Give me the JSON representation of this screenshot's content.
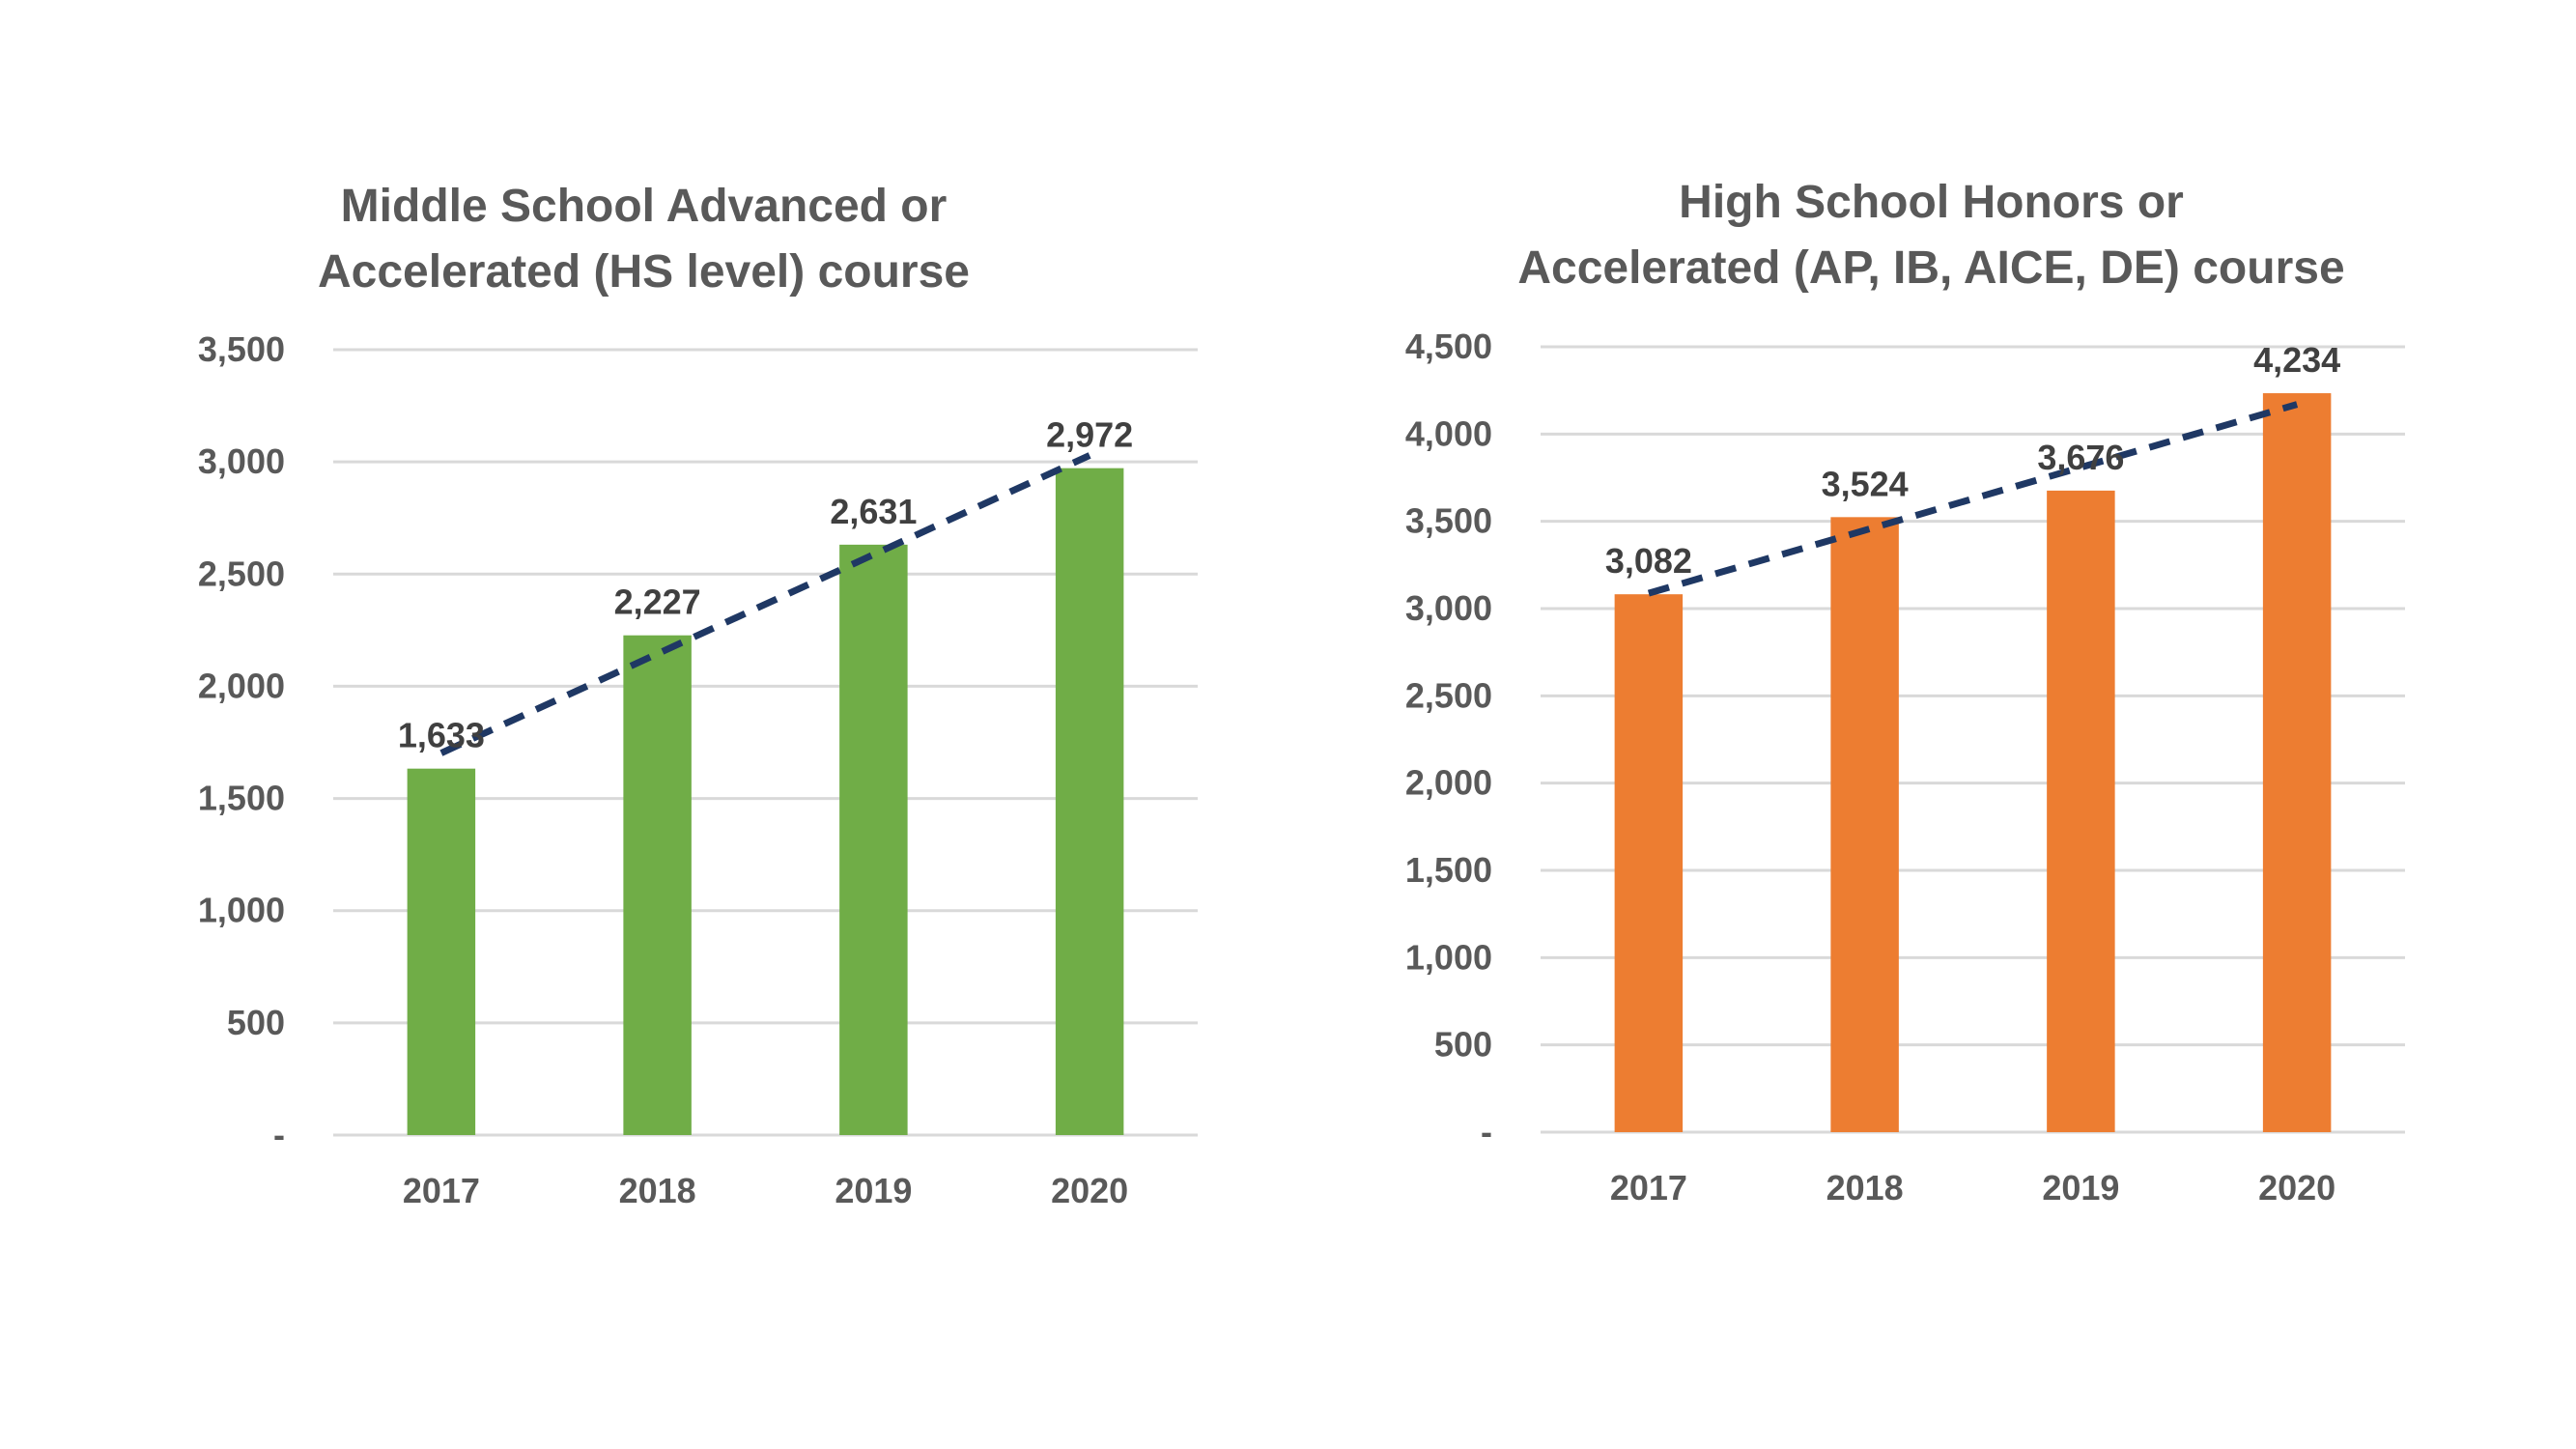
{
  "colors": {
    "green_bar": "#70AD47",
    "orange_bar": "#ED7D31",
    "trendline": "#1F3864",
    "gridline": "#D9D9D9",
    "text": "#595959"
  },
  "chart_data": [
    {
      "type": "bar",
      "title_lines": [
        "Middle School Advanced or",
        "Accelerated (HS level) course"
      ],
      "categories": [
        "2017",
        "2018",
        "2019",
        "2020"
      ],
      "values": [
        1633,
        2227,
        2631,
        2972
      ],
      "value_labels": [
        "1,633",
        "2,227",
        "2,631",
        "2,972"
      ],
      "ylim": [
        0,
        3500
      ],
      "yticks": [
        0,
        500,
        1000,
        1500,
        2000,
        2500,
        3000,
        3500
      ],
      "ytick_labels": [
        "-",
        "500",
        "1,000",
        "1,500",
        "2,000",
        "2,500",
        "3,000",
        "3,500"
      ],
      "bar_color": "#70AD47",
      "trendline": "linear, dashed",
      "grid": true,
      "xlabel": "",
      "ylabel": ""
    },
    {
      "type": "bar",
      "title_lines": [
        "High School Honors or",
        "Accelerated (AP, IB, AICE, DE) course"
      ],
      "categories": [
        "2017",
        "2018",
        "2019",
        "2020"
      ],
      "values": [
        3082,
        3524,
        3676,
        4234
      ],
      "value_labels": [
        "3,082",
        "3,524",
        "3,676",
        "4,234"
      ],
      "ylim": [
        0,
        4500
      ],
      "yticks": [
        0,
        500,
        1000,
        1500,
        2000,
        2500,
        3000,
        3500,
        4000,
        4500
      ],
      "ytick_labels": [
        "-",
        "500",
        "1,000",
        "1,500",
        "2,000",
        "2,500",
        "3,000",
        "3,500",
        "4,000",
        "4,500"
      ],
      "bar_color": "#ED7D31",
      "trendline": "linear, dashed",
      "grid": true,
      "xlabel": "",
      "ylabel": ""
    }
  ]
}
